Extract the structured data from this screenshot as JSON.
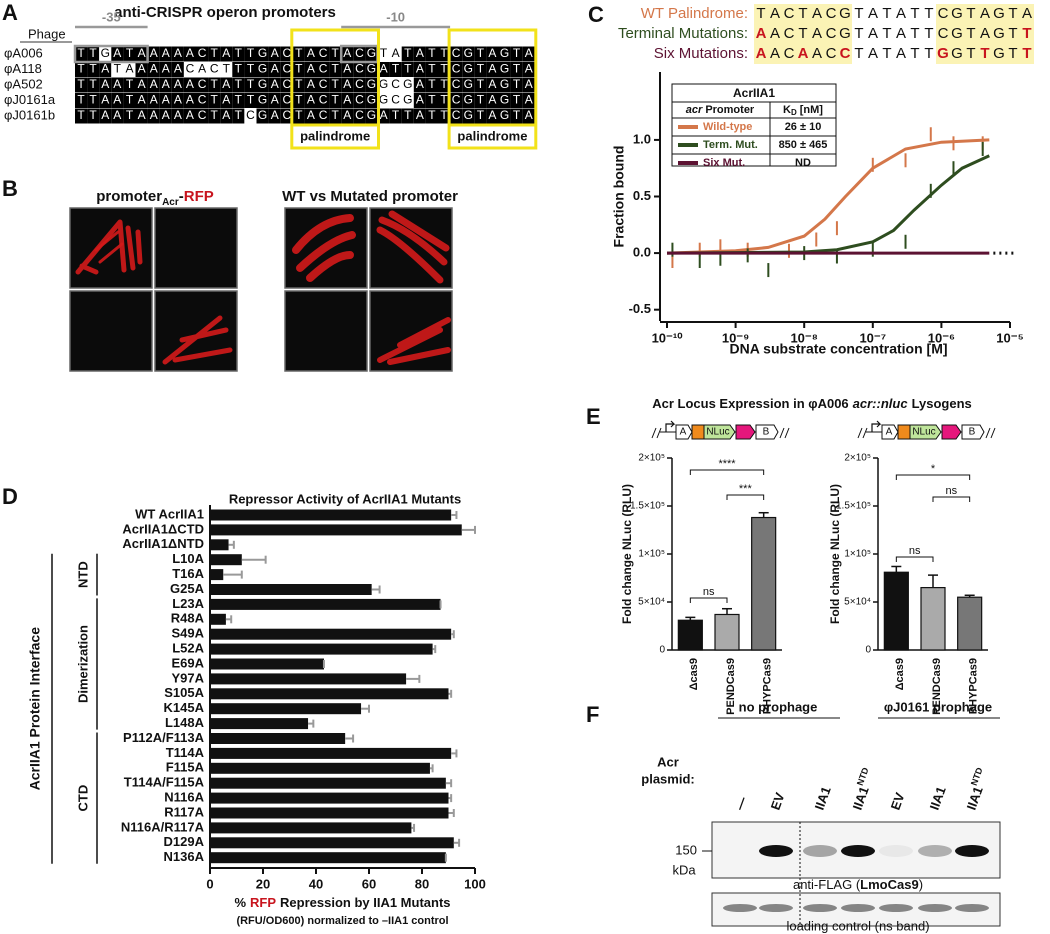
{
  "panel_labels": [
    "A",
    "B",
    "C",
    "D",
    "E",
    "F"
  ],
  "panel_a": {
    "title": "anti-CRISPR operon promoters",
    "header": "Phage",
    "box_35": "-35",
    "box_10": "-10",
    "phages": [
      "φA006",
      "φA118",
      "φA502",
      "φJ0161a",
      "φJ0161b"
    ],
    "sequences": [
      "TTGATAAAAACTATTGACTACTACGTATATTCGTAGTA",
      "TTATAAAAACACTTTGACTACTACGATTATTCGTAGTA",
      "TTAATAAAAACTATTGACTACTACGGCGATTCGTAGTA",
      "TTAATAAAAACTATTGACTACTACGGCGATTCGTAGTA",
      "TTAATAAAAACTATCGACTACTACGATTATTCGTAGTA"
    ],
    "palindromes": [
      "palindrome",
      "palindrome"
    ]
  },
  "panel_b": {
    "left_title": [
      "promoter",
      "Acr",
      "-",
      "RFP"
    ],
    "right_title": "WT vs Mutated promoter"
  },
  "panel_c": {
    "rows": [
      {
        "label": "WT Palindrome:",
        "color": "#d4774a",
        "sequence": "TACTACGTATATTCGTAGTA"
      },
      {
        "label": "Terminal Mutations:",
        "color": "#2e4d1f",
        "sequence": "AACTACGTATATTCGTAGTT"
      },
      {
        "label": "Six Mutations:",
        "color": "#5c1232",
        "sequence": "AACAACCTATATTGGTTGTT"
      }
    ]
  },
  "panel_e": {
    "title": [
      "Acr Locus Expression in φA006",
      "acr::nluc",
      "Lysogens"
    ],
    "genes": [
      "A",
      "NLuc",
      "B"
    ]
  },
  "panel_f": {
    "groups": [
      "no prophage",
      "φJ0161 prophage"
    ],
    "row_label": [
      "Acr",
      "plasmid:"
    ],
    "lanes": [
      {
        "text": "—"
      },
      {
        "text": "EV"
      },
      {
        "text": "IIA1"
      },
      {
        "text": "IIA1",
        "sup": "NTD"
      },
      {
        "text": "EV"
      },
      {
        "text": "IIA1"
      },
      {
        "text": "IIA1",
        "sup": "NTD"
      }
    ],
    "size": "150",
    "unit": "kDa",
    "blot_label": [
      "anti-FLAG (",
      "LmoCas9",
      ")"
    ],
    "control_label": "loading control (ns band)"
  },
  "chart_data": [
    {
      "type": "line",
      "ylabel": "Fraction bound",
      "xlabel": "DNA substrate concentration [M]",
      "xscale": "log",
      "xlim": [
        1e-10,
        1e-05
      ],
      "xticks": [
        {
          "value": 1e-10,
          "label": "10⁻¹⁰"
        },
        {
          "value": 1e-09,
          "label": "10⁻⁹"
        },
        {
          "value": 1e-08,
          "label": "10⁻⁸"
        },
        {
          "value": 1e-07,
          "label": "10⁻⁷"
        },
        {
          "value": 1e-06,
          "label": "10⁻⁶"
        },
        {
          "value": 1e-05,
          "label": "10⁻⁵"
        }
      ],
      "ylim": [
        -0.6,
        1.6
      ],
      "yticks": [
        -0.5,
        {
          "value": 0,
          "label": "0.0"
        },
        0.5,
        {
          "value": 1,
          "label": "1.0"
        }
      ],
      "legend": {
        "title": "AcrIIA1",
        "header_promoter": [
          "acr",
          "Promoter"
        ],
        "header_kd": [
          "K",
          "D",
          "[nM]"
        ]
      },
      "series": [
        {
          "name": "Wild-type",
          "color": "#d4774a",
          "kd": "26 ± 10",
          "x": [
            1e-10,
            3e-10,
            1e-09,
            3e-09,
            1e-08,
            2e-08,
            4e-08,
            1e-07,
            3e-07,
            1e-06,
            5e-06
          ],
          "values": [
            0,
            0.01,
            0.02,
            0.05,
            0.15,
            0.3,
            0.5,
            0.75,
            0.92,
            0.98,
            1.0
          ],
          "points_x": [
            1.2e-10,
            3e-10,
            6e-10,
            1.5e-09,
            6e-09,
            1.5e-08,
            3e-08,
            1e-07,
            3e-07,
            7e-07,
            1.5e-06,
            4e-06
          ],
          "points": [
            -0.07,
            0.03,
            0.06,
            0.03,
            0.02,
            0.12,
            0.22,
            0.78,
            0.82,
            1.05,
            0.97,
            0.97
          ]
        },
        {
          "name": "Term. Mut.",
          "color": "#2e4d1f",
          "kd": "850 ± 465",
          "x": [
            1e-10,
            1e-08,
            3e-08,
            1e-07,
            2e-07,
            4e-07,
            1e-06,
            2e-06,
            5e-06
          ],
          "values": [
            0,
            0.01,
            0.03,
            0.1,
            0.2,
            0.38,
            0.6,
            0.75,
            0.86
          ],
          "points_x": [
            1.2e-10,
            3e-10,
            6e-10,
            1.5e-09,
            3e-09,
            1e-08,
            3e-08,
            1e-07,
            3e-07,
            7e-07,
            1.5e-06,
            4e-06
          ],
          "points": [
            0.03,
            -0.07,
            -0.05,
            -0.02,
            -0.15,
            0.0,
            -0.03,
            0.03,
            0.1,
            0.55,
            0.75,
            0.92
          ]
        },
        {
          "name": "Six Mut.",
          "color": "#5c1232",
          "kd": "ND",
          "x": [
            1e-10,
            5e-06
          ],
          "values": [
            0,
            0
          ]
        }
      ]
    },
    {
      "type": "hbar",
      "title": "Repressor Activity of AcrIIA1 Mutants",
      "categories": [
        "WT AcrIIA1",
        "AcrIIA1ΔCTD",
        "AcrIIA1ΔNTD",
        "L10A",
        "T16A",
        "G25A",
        "L23A",
        "R48A",
        "S49A",
        "L52A",
        "E69A",
        "Y97A",
        "S105A",
        "K145A",
        "L148A",
        "P112A/F113A",
        "T114A",
        "F115A",
        "T114A/F115A",
        "N116A",
        "R117A",
        "N116A/R117A",
        "D129A",
        "N136A"
      ],
      "values": [
        91,
        95,
        7,
        12,
        5,
        61,
        87,
        6,
        91,
        84,
        43,
        74,
        90,
        57,
        37,
        51,
        91,
        83,
        89,
        90,
        90,
        76,
        92,
        89
      ],
      "errors": [
        2,
        5,
        2,
        9,
        7,
        3,
        0,
        2,
        1,
        1,
        0,
        5,
        1,
        3,
        2,
        3,
        2,
        1,
        2,
        1,
        2,
        1,
        2,
        0
      ],
      "color": "#111111",
      "error_color": "#999999",
      "xlim": [
        0,
        100
      ],
      "xticks": [
        0,
        20,
        40,
        60,
        80,
        100
      ],
      "xlabel": [
        "%",
        "RFP",
        "Repression by IIA1 Mutants"
      ],
      "xlabel_note": "(RFU/OD600) normalized to –IIA1 control",
      "groups": [
        "NTD",
        "Dimerization",
        "CTD"
      ],
      "group_title": "AcrIIA1 Protein Interface"
    },
    {
      "type": "bar",
      "ylabel": "Fold change NLuc (RLU)",
      "categories": [
        "Δcas9",
        "PENDCas9",
        "PHYPCas9"
      ],
      "values": [
        31000,
        37000,
        138000
      ],
      "errors": [
        3000,
        6000,
        5000
      ],
      "colors": [
        "#111111",
        "#aaaaaa",
        "#777777"
      ],
      "ylim": [
        0,
        200000
      ],
      "yticks": [
        0,
        {
          "value": 50000,
          "label": "5×10⁴"
        },
        {
          "value": 100000,
          "label": "1×10⁵"
        },
        {
          "value": 150000,
          "label": "1.5×10⁵"
        },
        {
          "value": 200000,
          "label": "2×10⁵"
        }
      ],
      "significance": [
        "****",
        "***",
        "ns"
      ]
    },
    {
      "type": "bar",
      "ylabel": "Fold change NLuc (RLU)",
      "categories": [
        "Δcas9",
        "PENDCas9",
        "PHYPCas9"
      ],
      "values": [
        81000,
        65000,
        55000
      ],
      "errors": [
        6000,
        13000,
        2000
      ],
      "colors": [
        "#111111",
        "#aaaaaa",
        "#777777"
      ],
      "ylim": [
        0,
        200000
      ],
      "yticks": [
        0,
        {
          "value": 50000,
          "label": "5×10⁴"
        },
        {
          "value": 100000,
          "label": "1×10⁵"
        },
        {
          "value": 150000,
          "label": "1.5×10⁵"
        },
        {
          "value": 200000,
          "label": "2×10⁵"
        }
      ],
      "significance": [
        "*",
        "ns",
        "ns"
      ]
    }
  ]
}
